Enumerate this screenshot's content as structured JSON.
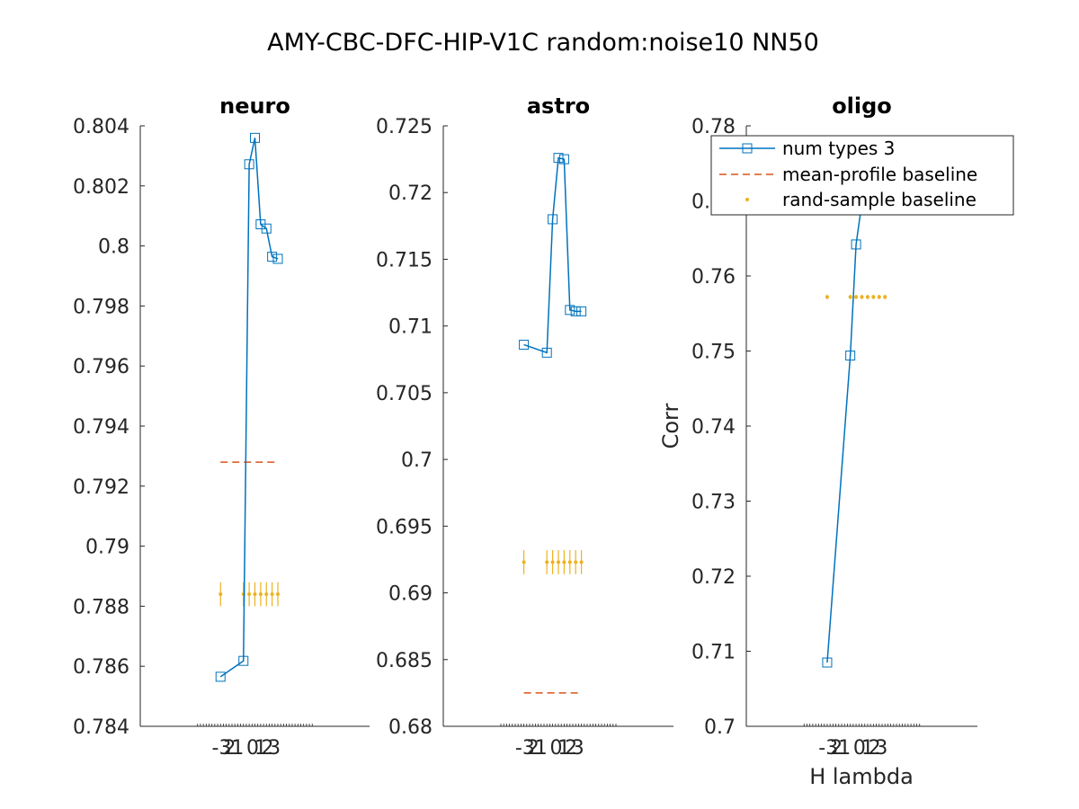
{
  "figure": {
    "title": "AMY-CBC-DFC-HIP-V1C random:noise10 NN50",
    "xlabel": "H lambda",
    "ylabel": "Corr",
    "xtick_labels": [
      "-3",
      "2",
      "1",
      "0",
      "1",
      "2",
      "3"
    ]
  },
  "legend": {
    "placement": "top-right of oligo panel",
    "entries": [
      {
        "label": "num types 3",
        "marker": "square",
        "color": "#0072BD"
      },
      {
        "label": "mean-profile baseline",
        "style": "dashed",
        "color": "#D95319"
      },
      {
        "label": "rand-sample baseline",
        "marker": "dot",
        "color": "#EDB120"
      }
    ]
  },
  "colors": {
    "series": "#0072BD",
    "mean_baseline": "#D95319",
    "rand_baseline": "#EDB120"
  },
  "chart_data": [
    {
      "type": "line",
      "title": "neuro",
      "xlabel": "",
      "ylabel": "",
      "xlim": [
        -10,
        10
      ],
      "ylim": [
        0.784,
        0.804
      ],
      "yticks": [
        0.784,
        0.786,
        0.788,
        0.79,
        0.792,
        0.794,
        0.796,
        0.798,
        0.8,
        0.802,
        0.804
      ],
      "ytick_labels": [
        "0.784",
        "0.786",
        "0.788",
        "0.79",
        "0.792",
        "0.794",
        "0.796",
        "0.798",
        "0.8",
        "0.802",
        "0.804"
      ],
      "series": [
        {
          "name": "num types 3",
          "x": [
            -3,
            -1,
            -0.5,
            0,
            0.5,
            1,
            1.5,
            2
          ],
          "y": [
            0.78565,
            0.78618,
            0.80272,
            0.8036,
            0.80072,
            0.80058,
            0.79964,
            0.79957
          ]
        }
      ],
      "mean_baseline": {
        "x": [
          -3,
          2
        ],
        "y": 0.7928
      },
      "rand_baseline": {
        "x": [
          -3,
          -1,
          -0.5,
          0,
          0.5,
          1,
          1.5,
          2
        ],
        "y": [
          0.7884,
          0.7884,
          0.7884,
          0.7884,
          0.7884,
          0.7884,
          0.7884,
          0.7884
        ],
        "err": [
          0.0004,
          0.0004,
          0.0004,
          0.0004,
          0.0004,
          0.0004,
          0.0004,
          0.0004
        ]
      }
    },
    {
      "type": "line",
      "title": "astro",
      "xlabel": "",
      "ylabel": "",
      "xlim": [
        -10,
        10
      ],
      "ylim": [
        0.68,
        0.725
      ],
      "yticks": [
        0.68,
        0.685,
        0.69,
        0.695,
        0.7,
        0.705,
        0.71,
        0.715,
        0.72,
        0.725
      ],
      "ytick_labels": [
        "0.68",
        "0.685",
        "0.69",
        "0.695",
        "0.7",
        "0.705",
        "0.71",
        "0.715",
        "0.72",
        "0.725"
      ],
      "series": [
        {
          "name": "num types 3",
          "x": [
            -3,
            -1,
            -0.5,
            0,
            0.5,
            1,
            1.5,
            2
          ],
          "y": [
            0.7086,
            0.708,
            0.718,
            0.7226,
            0.7225,
            0.7112,
            0.7111,
            0.7111
          ]
        }
      ],
      "mean_baseline": {
        "x": [
          -3,
          2
        ],
        "y": 0.6825
      },
      "rand_baseline": {
        "x": [
          -3,
          -1,
          -0.5,
          0,
          0.5,
          1,
          1.5,
          2
        ],
        "y": [
          0.6923,
          0.6923,
          0.6923,
          0.6923,
          0.6923,
          0.6923,
          0.6923,
          0.6923
        ],
        "err": [
          0.0009,
          0.0009,
          0.0009,
          0.0009,
          0.0009,
          0.0009,
          0.0009,
          0.0009
        ]
      }
    },
    {
      "type": "line",
      "title": "oligo",
      "xlabel": "H lambda",
      "ylabel": "Corr",
      "xlim": [
        -10,
        10
      ],
      "ylim": [
        0.7,
        0.78
      ],
      "yticks": [
        0.7,
        0.71,
        0.72,
        0.73,
        0.74,
        0.75,
        0.76,
        0.77,
        0.78
      ],
      "ytick_labels": [
        "0.7",
        "0.71",
        "0.72",
        "0.73",
        "0.74",
        "0.75",
        "0.76",
        "0.77",
        "0.78"
      ],
      "series": [
        {
          "name": "num types 3",
          "x": [
            -3,
            -1,
            -0.5,
            0,
            0.5,
            1,
            1.5,
            2
          ],
          "y": [
            0.7085,
            0.7494,
            0.7642,
            0.7697,
            0.7697,
            0.7697,
            0.7697,
            0.7697
          ]
        }
      ],
      "mean_baseline": {
        "x": [
          -3,
          2
        ],
        "y": 0.7697
      },
      "rand_baseline": {
        "x": [
          -3,
          -1,
          -0.5,
          0,
          0.5,
          1,
          1.5,
          2
        ],
        "y": [
          0.7572,
          0.7572,
          0.7572,
          0.7572,
          0.7572,
          0.7572,
          0.7572,
          0.7572
        ],
        "err": [
          0.0003,
          0.0003,
          0.0003,
          0.0003,
          0.0003,
          0.0003,
          0.0003,
          0.0003
        ]
      }
    }
  ]
}
